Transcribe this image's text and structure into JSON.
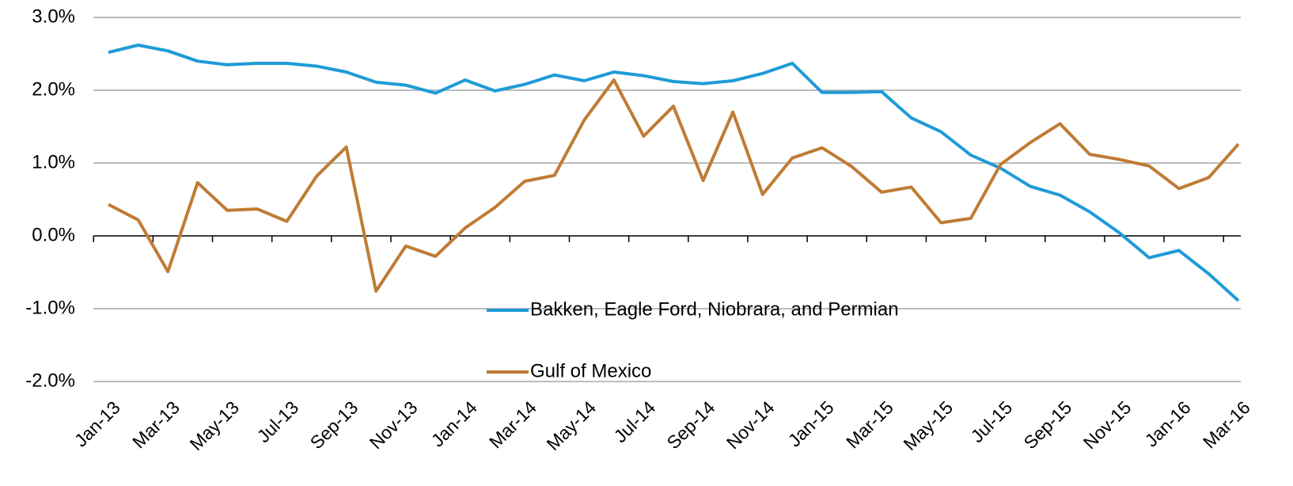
{
  "chart_data": {
    "type": "line",
    "categories": [
      "Jan-13",
      null,
      "Mar-13",
      null,
      "May-13",
      null,
      "Jul-13",
      null,
      "Sep-13",
      null,
      "Nov-13",
      null,
      "Jan-14",
      null,
      "Mar-14",
      null,
      "May-14",
      null,
      "Jul-14",
      null,
      "Sep-14",
      null,
      "Nov-14",
      null,
      "Jan-15",
      null,
      "Mar-15",
      null,
      "May-15",
      null,
      "Jul-15",
      null,
      "Sep-15",
      null,
      "Nov-15",
      null,
      "Jan-16",
      null,
      "Mar-16"
    ],
    "series": [
      {
        "name": "Bakken, Eagle Ford, Niobrara, and Permian",
        "color": "#1f9bd7",
        "values": [
          2.52,
          2.62,
          2.54,
          2.4,
          2.35,
          2.37,
          2.37,
          2.33,
          2.25,
          2.11,
          2.07,
          1.96,
          2.14,
          1.99,
          2.08,
          2.21,
          2.13,
          2.25,
          2.2,
          2.12,
          2.09,
          2.13,
          2.23,
          2.37,
          1.97,
          1.97,
          1.98,
          1.62,
          1.43,
          1.11,
          0.93,
          0.68,
          0.56,
          0.33,
          0.04,
          -0.3,
          -0.2,
          -0.52,
          -0.89
        ]
      },
      {
        "name": "Gulf of Mexico",
        "color": "#c07b35",
        "values": [
          0.43,
          0.22,
          -0.49,
          0.73,
          0.35,
          0.37,
          0.2,
          0.82,
          1.22,
          -0.76,
          -0.14,
          -0.28,
          0.11,
          0.39,
          0.75,
          0.83,
          1.59,
          2.14,
          1.37,
          1.78,
          0.76,
          1.7,
          0.57,
          1.07,
          1.21,
          0.95,
          0.6,
          0.67,
          0.18,
          0.24,
          0.98,
          1.28,
          1.54,
          1.12,
          1.05,
          0.96,
          0.65,
          0.8,
          1.26
        ]
      }
    ],
    "ylim": [
      -2,
      3
    ],
    "yticks": [
      {
        "value": -2,
        "label": "-2.0%"
      },
      {
        "value": -1,
        "label": "-1.0%"
      },
      {
        "value": 0,
        "label": "0.0%"
      },
      {
        "value": 1,
        "label": "1.0%"
      },
      {
        "value": 2,
        "label": "2.0%"
      },
      {
        "value": 3,
        "label": "3.0%"
      }
    ],
    "grid": true
  }
}
